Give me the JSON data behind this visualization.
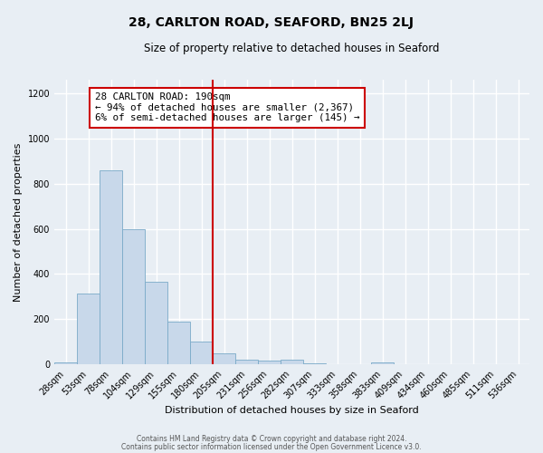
{
  "title": "28, CARLTON ROAD, SEAFORD, BN25 2LJ",
  "subtitle": "Size of property relative to detached houses in Seaford",
  "xlabel": "Distribution of detached houses by size in Seaford",
  "ylabel": "Number of detached properties",
  "bin_labels": [
    "28sqm",
    "53sqm",
    "78sqm",
    "104sqm",
    "129sqm",
    "155sqm",
    "180sqm",
    "205sqm",
    "231sqm",
    "256sqm",
    "282sqm",
    "307sqm",
    "333sqm",
    "358sqm",
    "383sqm",
    "409sqm",
    "434sqm",
    "460sqm",
    "485sqm",
    "511sqm",
    "536sqm"
  ],
  "bar_values": [
    10,
    315,
    860,
    600,
    365,
    190,
    100,
    48,
    20,
    15,
    20,
    5,
    0,
    0,
    10,
    0,
    0,
    0,
    0,
    0,
    0
  ],
  "bar_color": "#c8d8ea",
  "bar_edgecolor": "#7aaac8",
  "vline_x": 7.0,
  "vline_color": "#cc0000",
  "annotation_title": "28 CARLTON ROAD: 190sqm",
  "annotation_line1": "← 94% of detached houses are smaller (2,367)",
  "annotation_line2": "6% of semi-detached houses are larger (145) →",
  "annotation_box_color": "#cc0000",
  "ylim": [
    0,
    1260
  ],
  "yticks": [
    0,
    200,
    400,
    600,
    800,
    1000,
    1200
  ],
  "footer1": "Contains HM Land Registry data © Crown copyright and database right 2024.",
  "footer2": "Contains public sector information licensed under the Open Government Licence v3.0.",
  "bg_color": "#e8eef4",
  "plot_bg_color": "#e8eef4"
}
